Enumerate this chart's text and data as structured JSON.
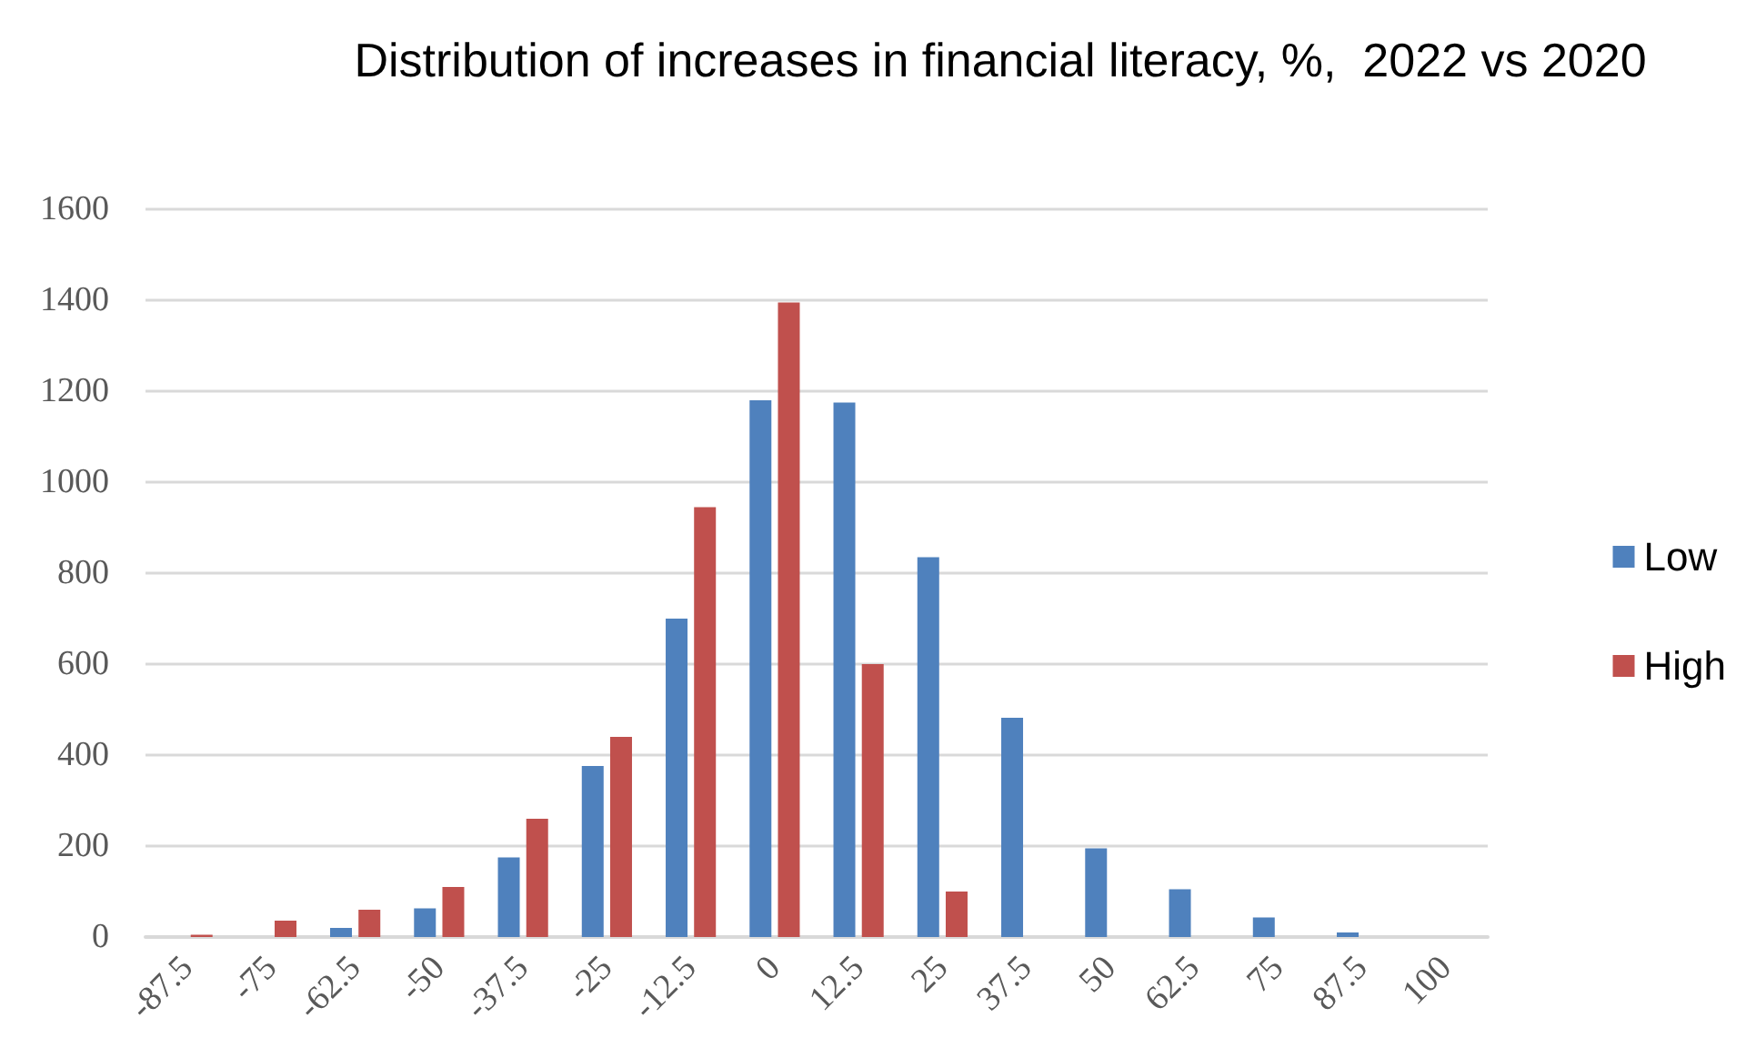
{
  "chart_data": {
    "type": "bar",
    "title": "Distribution of increases in financial literacy, %,  2022 vs 2020",
    "categories": [
      "-87.5",
      "-75",
      "-62.5",
      "-50",
      "-37.5",
      "-25",
      "-12.5",
      "0",
      "12.5",
      "25",
      "37.5",
      "50",
      "62.5",
      "75",
      "87.5",
      "100"
    ],
    "series": [
      {
        "name": "Low",
        "color": "#4f81bd",
        "values": [
          null,
          null,
          20,
          63,
          175,
          376,
          700,
          1180,
          1175,
          835,
          482,
          195,
          105,
          43,
          10,
          null
        ]
      },
      {
        "name": "High",
        "color": "#c0504d",
        "values": [
          5,
          36,
          60,
          110,
          260,
          440,
          945,
          1395,
          600,
          100,
          null,
          null,
          null,
          null,
          null,
          null
        ]
      }
    ],
    "ylim": [
      0,
      1600
    ],
    "yticks": [
      0,
      200,
      400,
      600,
      800,
      1000,
      1200,
      1400,
      1600
    ],
    "grid": "y",
    "legend": "right"
  }
}
